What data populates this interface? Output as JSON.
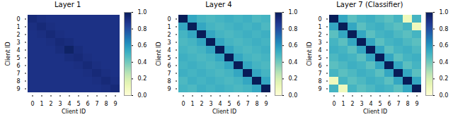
{
  "chart_data": [
    {
      "type": "heatmap",
      "title": "Layer 1",
      "xlabel": "Client ID",
      "ylabel": "Client ID",
      "categories": [
        "0",
        "1",
        "2",
        "3",
        "4",
        "5",
        "6",
        "7",
        "8",
        "9"
      ],
      "values": [
        [
          0.93,
          0.91,
          0.9,
          0.9,
          0.9,
          0.9,
          0.9,
          0.9,
          0.9,
          0.9
        ],
        [
          0.91,
          0.93,
          0.91,
          0.9,
          0.9,
          0.9,
          0.9,
          0.9,
          0.9,
          0.9
        ],
        [
          0.9,
          0.91,
          0.93,
          0.91,
          0.9,
          0.9,
          0.9,
          0.9,
          0.9,
          0.9
        ],
        [
          0.9,
          0.9,
          0.91,
          0.93,
          0.92,
          0.9,
          0.9,
          0.9,
          0.9,
          0.9
        ],
        [
          0.9,
          0.9,
          0.9,
          0.92,
          0.97,
          0.92,
          0.9,
          0.9,
          0.9,
          0.9
        ],
        [
          0.9,
          0.9,
          0.9,
          0.9,
          0.92,
          0.93,
          0.91,
          0.9,
          0.9,
          0.9
        ],
        [
          0.9,
          0.9,
          0.9,
          0.9,
          0.9,
          0.91,
          0.93,
          0.91,
          0.9,
          0.9
        ],
        [
          0.9,
          0.9,
          0.9,
          0.9,
          0.9,
          0.9,
          0.91,
          0.93,
          0.91,
          0.9
        ],
        [
          0.9,
          0.9,
          0.9,
          0.9,
          0.9,
          0.9,
          0.9,
          0.91,
          0.93,
          0.91
        ],
        [
          0.9,
          0.9,
          0.9,
          0.9,
          0.9,
          0.9,
          0.9,
          0.9,
          0.91,
          0.93
        ]
      ],
      "color": "YlGnBu",
      "colorbar": {
        "range": [
          0.0,
          1.0
        ],
        "ticks": [
          {
            "value": 0.0,
            "label": "0.0"
          },
          0.2,
          0.4,
          0.6,
          0.8,
          {
            "value": 1.0,
            "label": "1.0"
          }
        ]
      }
    },
    {
      "type": "heatmap",
      "title": "Layer 4",
      "xlabel": "Client ID",
      "ylabel": "Client ID",
      "categories": [
        "0",
        "1",
        "2",
        "3",
        "4",
        "5",
        "6",
        "7",
        "8",
        "9"
      ],
      "values": [
        [
          1.0,
          0.55,
          0.5,
          0.48,
          0.5,
          0.52,
          0.5,
          0.52,
          0.48,
          0.5
        ],
        [
          0.55,
          1.0,
          0.55,
          0.5,
          0.48,
          0.5,
          0.52,
          0.5,
          0.52,
          0.48
        ],
        [
          0.5,
          0.55,
          1.0,
          0.55,
          0.5,
          0.48,
          0.5,
          0.52,
          0.5,
          0.52
        ],
        [
          0.48,
          0.5,
          0.55,
          1.0,
          0.55,
          0.5,
          0.48,
          0.5,
          0.52,
          0.5
        ],
        [
          0.5,
          0.48,
          0.5,
          0.55,
          1.0,
          0.55,
          0.5,
          0.48,
          0.5,
          0.52
        ],
        [
          0.52,
          0.5,
          0.48,
          0.5,
          0.55,
          1.0,
          0.55,
          0.5,
          0.48,
          0.5
        ],
        [
          0.5,
          0.52,
          0.5,
          0.48,
          0.5,
          0.55,
          1.0,
          0.55,
          0.5,
          0.48
        ],
        [
          0.52,
          0.5,
          0.52,
          0.5,
          0.48,
          0.5,
          0.55,
          1.0,
          0.55,
          0.5
        ],
        [
          0.48,
          0.52,
          0.5,
          0.52,
          0.5,
          0.48,
          0.5,
          0.55,
          1.0,
          0.55
        ],
        [
          0.5,
          0.48,
          0.52,
          0.5,
          0.52,
          0.5,
          0.48,
          0.5,
          0.55,
          1.0
        ]
      ],
      "color": "YlGnBu",
      "colorbar": {
        "range": [
          0.0,
          1.0
        ],
        "ticks": [
          {
            "value": 0.0,
            "label": "0.0"
          },
          0.2,
          0.4,
          0.6,
          0.8,
          {
            "value": 1.0,
            "label": "1.0"
          }
        ]
      }
    },
    {
      "type": "heatmap",
      "title": "Layer 7 (Classifier)",
      "xlabel": "Client ID",
      "ylabel": "Client ID",
      "categories": [
        "0",
        "1",
        "2",
        "3",
        "4",
        "5",
        "6",
        "7",
        "8",
        "9"
      ],
      "values": [
        [
          1.0,
          0.55,
          0.45,
          0.5,
          0.52,
          0.48,
          0.45,
          0.5,
          0.1,
          0.5
        ],
        [
          0.55,
          1.0,
          0.55,
          0.45,
          0.5,
          0.52,
          0.48,
          0.45,
          0.5,
          0.1
        ],
        [
          0.45,
          0.55,
          1.0,
          0.55,
          0.45,
          0.5,
          0.52,
          0.48,
          0.45,
          0.5
        ],
        [
          0.5,
          0.45,
          0.55,
          1.0,
          0.55,
          0.45,
          0.5,
          0.52,
          0.48,
          0.45
        ],
        [
          0.52,
          0.5,
          0.45,
          0.55,
          1.0,
          0.55,
          0.45,
          0.5,
          0.52,
          0.48
        ],
        [
          0.48,
          0.52,
          0.5,
          0.45,
          0.55,
          1.0,
          0.55,
          0.45,
          0.5,
          0.52
        ],
        [
          0.45,
          0.48,
          0.52,
          0.5,
          0.45,
          0.55,
          1.0,
          0.55,
          0.45,
          0.5
        ],
        [
          0.5,
          0.45,
          0.48,
          0.52,
          0.5,
          0.45,
          0.55,
          1.0,
          0.55,
          0.45
        ],
        [
          0.1,
          0.5,
          0.45,
          0.48,
          0.52,
          0.5,
          0.45,
          0.55,
          1.0,
          0.55
        ],
        [
          0.5,
          0.1,
          0.5,
          0.45,
          0.48,
          0.52,
          0.5,
          0.45,
          0.55,
          1.0
        ]
      ],
      "color": "YlGnBu",
      "colorbar": {
        "range": [
          0.0,
          1.0
        ],
        "ticks": [
          {
            "value": 0.0,
            "label": "0.0"
          },
          0.2,
          0.4,
          0.6,
          0.8,
          {
            "value": 1.0,
            "label": "1.0"
          }
        ]
      }
    }
  ]
}
